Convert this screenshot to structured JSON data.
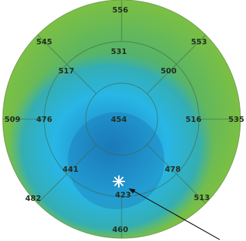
{
  "thickness_map": {
    "marker": "asterisk",
    "zones": {
      "outer_top": "556",
      "outer_top_left": "545",
      "outer_top_right": "553",
      "outer_left": "509",
      "outer_right": "535",
      "outer_bottom_left": "482",
      "outer_bottom_right": "513",
      "outer_bottom": "460",
      "inner_top": "531",
      "inner_top_left": "517",
      "inner_top_right": "500",
      "inner_left": "476",
      "inner_right": "516",
      "inner_bottom_left": "441",
      "inner_bottom_right": "478",
      "center": "454",
      "thinnest": "423"
    }
  },
  "colors": {
    "outer_green": "#7cc043",
    "mid_green": "#54b36a",
    "teal": "#34aeb3",
    "light_blue": "#28b6e6",
    "deep_blue": "#1b7fc0",
    "spoke_line": "#3f6a48",
    "arrow": "#111111"
  }
}
